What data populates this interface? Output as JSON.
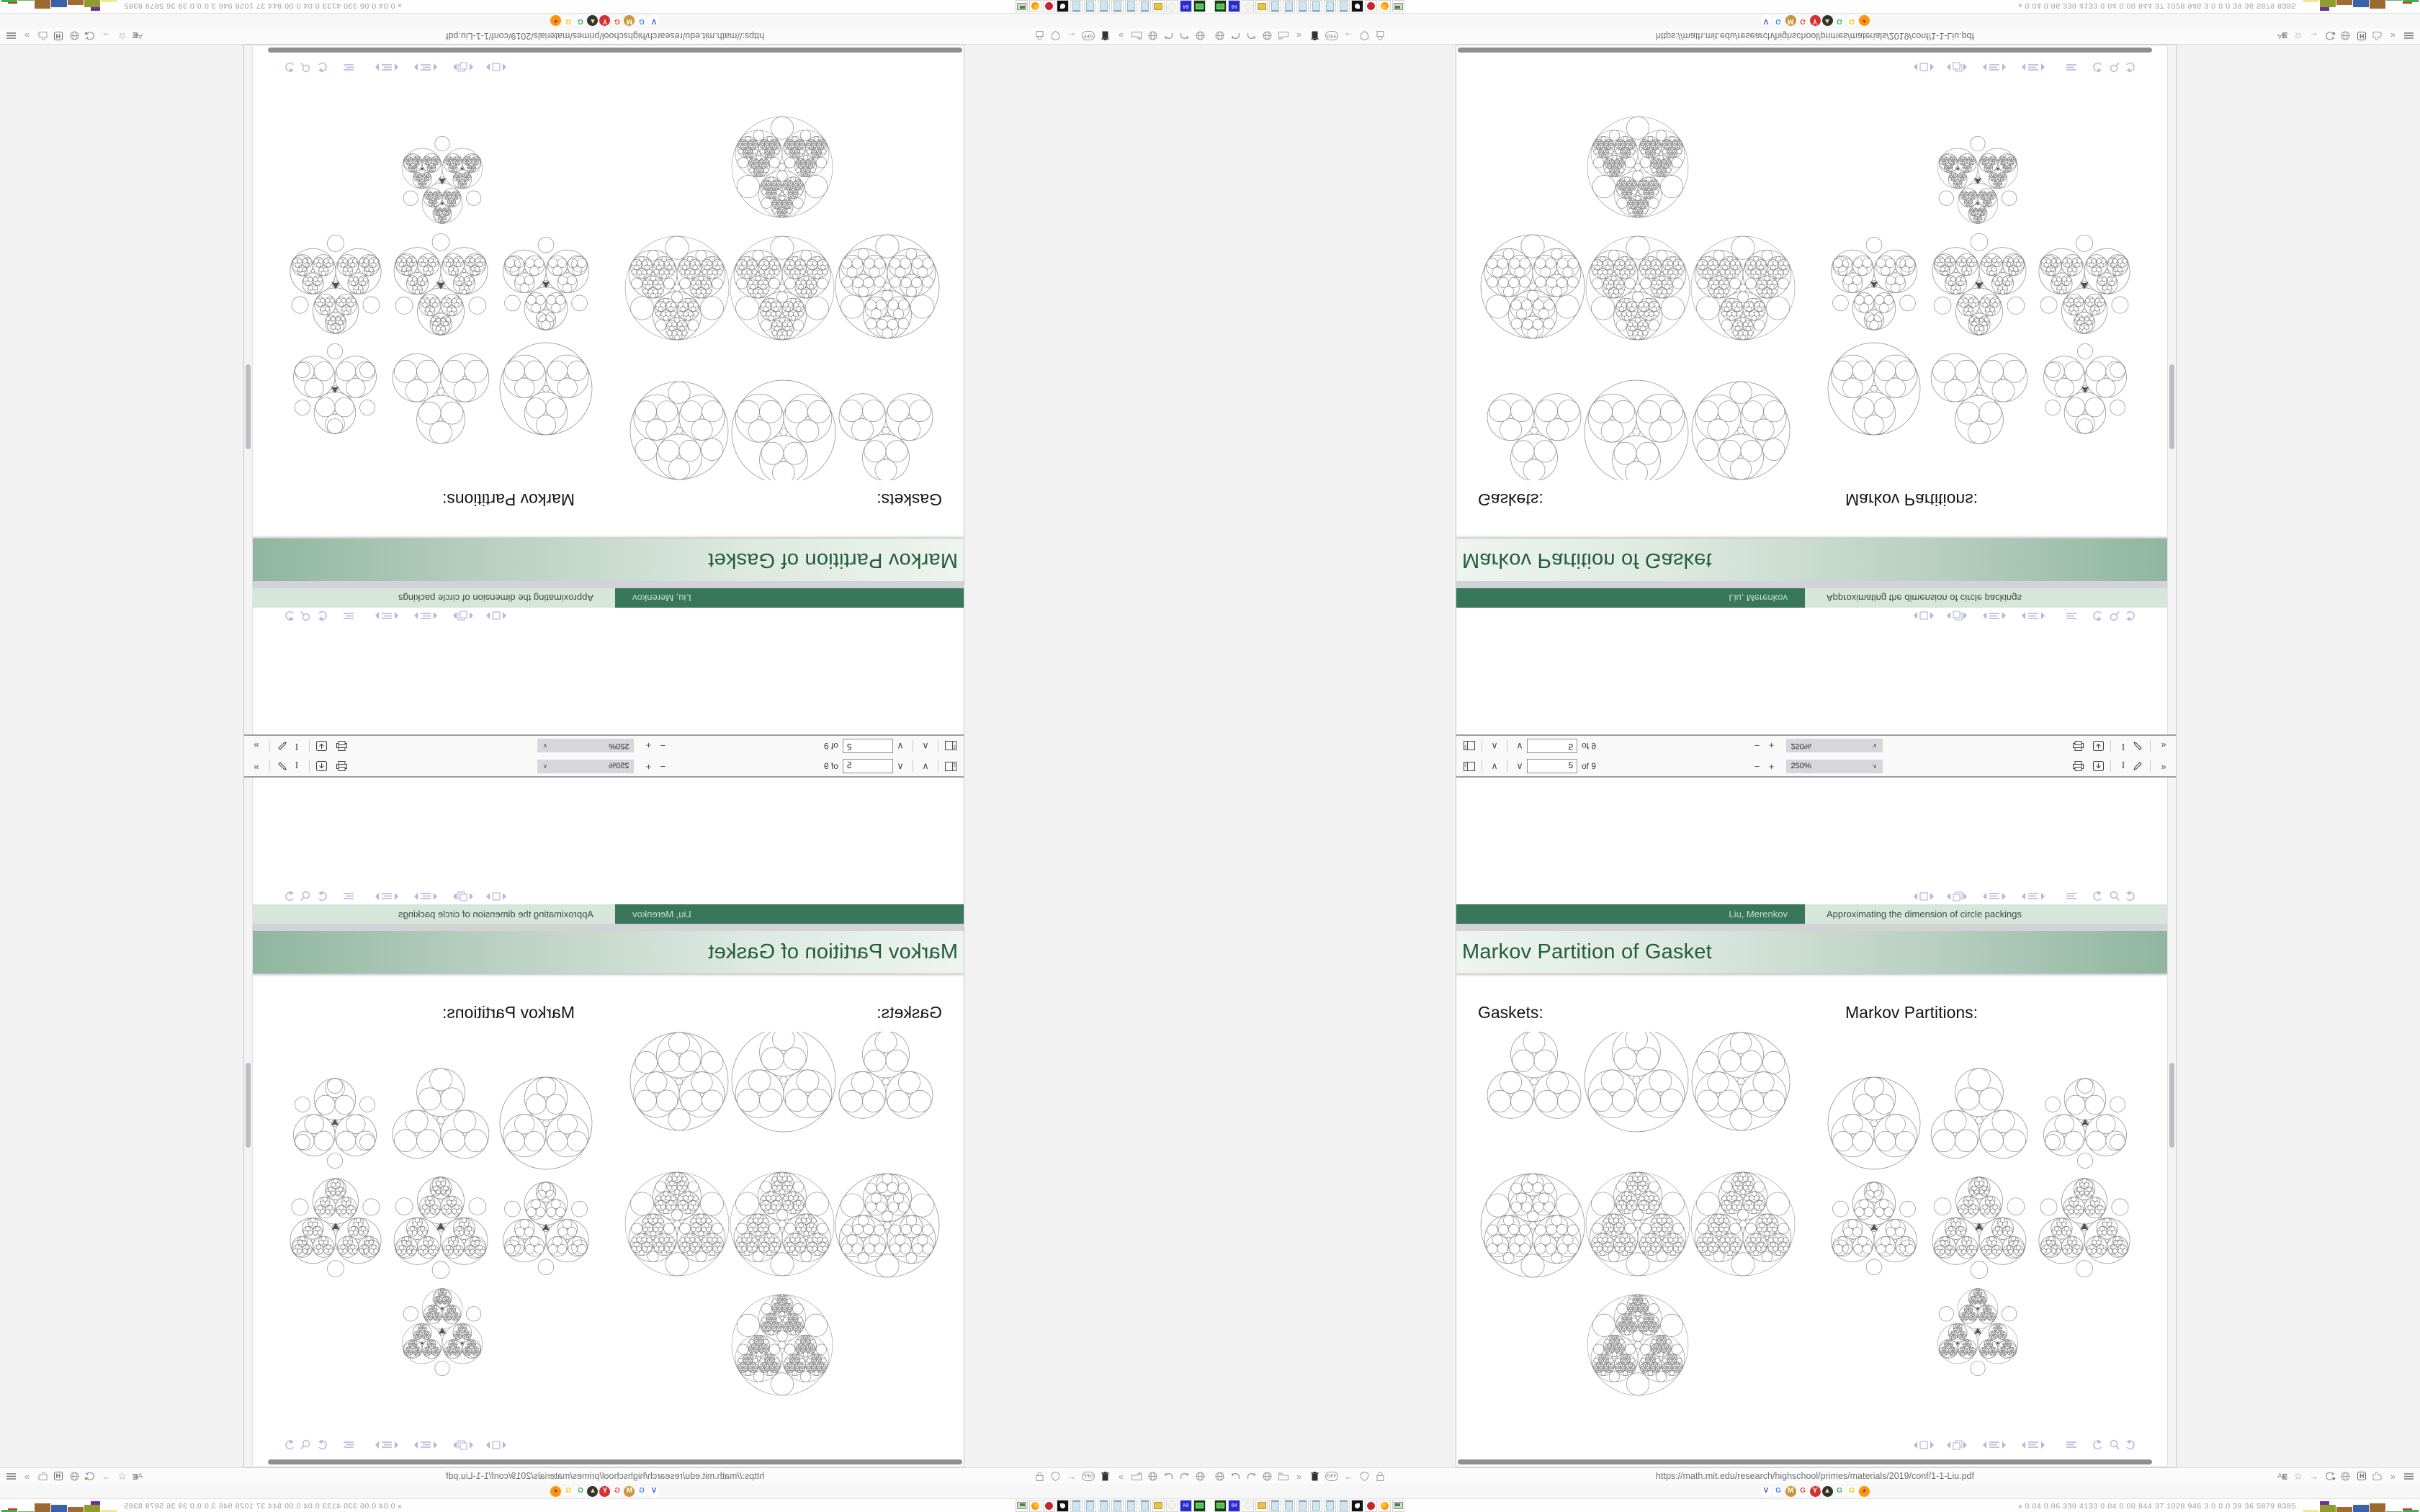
{
  "pdf_toolbar": {
    "page_value": "5",
    "page_of": "of 9",
    "zoom_level": "250%",
    "left_icons": [
      "sidebar-toggle",
      "page-up",
      "page-down"
    ],
    "zoom_icons": [
      "zoom-out",
      "zoom-in",
      "zoom-select"
    ],
    "right_icons": [
      "print",
      "save",
      "text-select",
      "draw",
      "more-tools"
    ]
  },
  "slide": {
    "frame_title": "Markov Partition of Gasket",
    "footline_author": "Liu, Merenkov",
    "footline_title": "Approximating the dimension of circle packings",
    "left_label": "Gaskets:",
    "right_label": "Markov Partitions:",
    "nav_symbols": [
      "prev-slide",
      "slide",
      "next-slide",
      "prev-frame",
      "frames",
      "next-frame",
      "prev-subsection",
      "subsection",
      "next-subsection",
      "prev-section",
      "section",
      "next-section",
      "appendix",
      "back-history",
      "search",
      "forward-history"
    ]
  },
  "address_bar": {
    "url": "https://math.mit.edu/research/highschool/primes/materials/2019/conf/1-1-Liu.pdf",
    "off_badge": "OFF",
    "left_icons": [
      "globe",
      "history-back",
      "history-forward",
      "globe",
      "folder",
      "chevron-double",
      "trash",
      "off-badge",
      "back-arrow",
      "shield",
      "lock"
    ],
    "right_icons": [
      "translate",
      "bookmark-star",
      "forward-arrow",
      "reload",
      "globe",
      "h-extension",
      "puzzle-extension",
      "chevron-double",
      "menu"
    ]
  },
  "tab_strip": {
    "favicons": [
      {
        "name": "vivaldi",
        "glyph": "V",
        "bg": "#ffffff",
        "fg": "#2753d6"
      },
      {
        "name": "google-blue",
        "glyph": "G",
        "bg": "#ffffff",
        "fg": "#4285f4"
      },
      {
        "name": "medal",
        "glyph": "M",
        "bg": "#c9973a",
        "fg": "#ffffff"
      },
      {
        "name": "google-red",
        "glyph": "G",
        "bg": "#ffffff",
        "fg": "#ea4335"
      },
      {
        "name": "yandex",
        "glyph": "Y",
        "bg": "#d63031",
        "fg": "#ffffff"
      },
      {
        "name": "photos",
        "glyph": "▲",
        "bg": "#2d3436",
        "fg": "#ffe066"
      },
      {
        "name": "google-green",
        "glyph": "G",
        "bg": "#ffffff",
        "fg": "#34a853"
      },
      {
        "name": "google-yellow",
        "glyph": "G",
        "bg": "#ffffff",
        "fg": "#fbbc05"
      },
      {
        "name": "firefox",
        "glyph": "◕",
        "bg": "#ff9500",
        "fg": "#6a3bbf"
      }
    ]
  },
  "taskbar": {
    "launchers": [
      "terminal",
      "floppy-64",
      "disc",
      "folder",
      "notepad",
      "notepad",
      "notepad",
      "notepad",
      "notepad",
      "notepad",
      "cat",
      "red-badge",
      "firefox",
      "workstation"
    ],
    "floppy_label": "64",
    "stats": "0.04 0.06 330 4133 0.04 0.00 844  37  1028 946  3.0  0.0  39  36  5879 8385",
    "bars": [
      {
        "color": "#efe98f",
        "height": 4
      },
      {
        "color": "#8f9c2e",
        "height": 11,
        "cap": "#7130a0",
        "cap_height": 5
      },
      {
        "color": "#a06a32",
        "height": 8
      },
      {
        "color": "#3a62a8",
        "height": 11
      },
      {
        "color": "#9c6a2e",
        "height": 13
      },
      {
        "color": "#5cb85c",
        "height": 2
      },
      {
        "color": "#3fae4a",
        "height": 4,
        "cap": "#c0392b",
        "cap_height": 2
      }
    ]
  },
  "figure_groups": {
    "left_name": "apollonian-gasket-generations",
    "right_name": "markov-partition-generations"
  }
}
